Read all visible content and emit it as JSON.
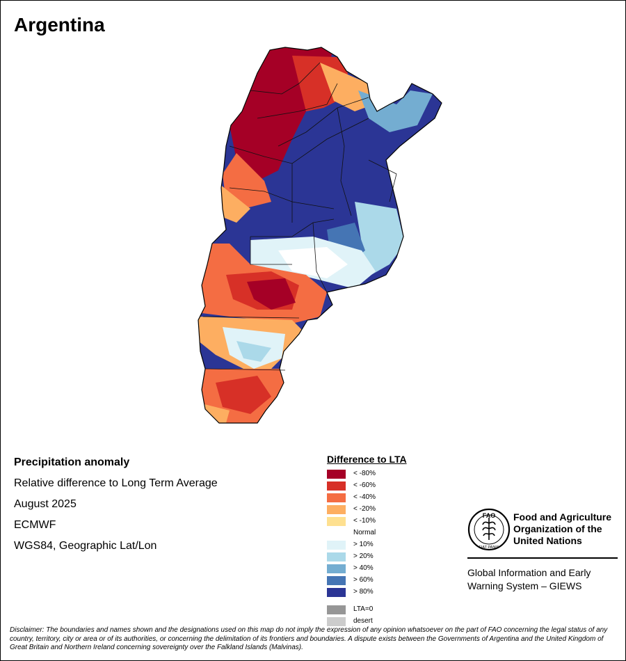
{
  "title": "Argentina",
  "info": {
    "heading": "Precipitation anomaly",
    "subtitle": "Relative difference to Long Term Average",
    "period": "August 2025",
    "model": "ECMWF",
    "projection": "WGS84, Geographic Lat/Lon"
  },
  "legend": {
    "title": "Difference to LTA",
    "items": [
      {
        "label": "< -80%",
        "color": "#a50026"
      },
      {
        "label": "< -60%",
        "color": "#d73027"
      },
      {
        "label": "< -40%",
        "color": "#f46d43"
      },
      {
        "label": "< -20%",
        "color": "#fdae61"
      },
      {
        "label": "< -10%",
        "color": "#fee090"
      },
      {
        "label": "Normal",
        "color": "#ffffff"
      },
      {
        "label": "> 10%",
        "color": "#e0f3f8"
      },
      {
        "label": "> 20%",
        "color": "#abd9e9"
      },
      {
        "label": "> 40%",
        "color": "#74add1"
      },
      {
        "label": "> 60%",
        "color": "#4575b4"
      },
      {
        "label": "> 80%",
        "color": "#2b3595"
      }
    ],
    "extra": [
      {
        "label": "LTA=0",
        "color": "#969696"
      },
      {
        "label": "desert",
        "color": "#cccccc"
      }
    ]
  },
  "fao": {
    "org_line1": "Food and Agriculture",
    "org_line2": "Organization of the",
    "org_line3": "United Nations",
    "emblem_text": "FAO",
    "motto": "FIAT PANIS",
    "giews_line1": "Global Information and Early",
    "giews_line2": "Warning System – GIEWS"
  },
  "disclaimer": "Disclaimer: The boundaries and names shown and the designations used on this map do not imply the expression of any opinion whatsoever on the part of FAO concerning the legal status of any country, territory, city or area or of its authorities, or concerning the delimitation of its frontiers and boundaries. A dispute exists between the Governments of Argentina and the United Kingdom of Great Britain and Northern Ireland concerning sovereignty over the Falkland Islands (Malvinas)."
}
